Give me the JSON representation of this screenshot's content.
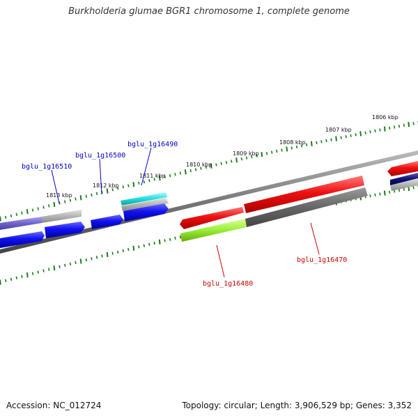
{
  "title": "Burkholderia glumae BGR1 chromosome 1, complete genome",
  "footer": {
    "accession": "Accession: NC_012724",
    "summary": "Topology: circular; Length: 3,906,529 bp; Genes: 3,352"
  },
  "scale_labels": [
    "1806 kbp",
    "1807 kbp",
    "1808 kbp",
    "1809 kbp",
    "1810 kbp",
    "1811 kbp",
    "1812 kbp",
    "1813 kbp"
  ],
  "gene_labels": [
    {
      "text": "bglu_1g16510",
      "color": "#0000cc"
    },
    {
      "text": "bglu_1g16500",
      "color": "#0000cc"
    },
    {
      "text": "bglu_1g16490",
      "color": "#0000cc"
    },
    {
      "text": "bglu_1g16480",
      "color": "#cc0000"
    },
    {
      "text": "bglu_1g16470",
      "color": "#cc0000"
    }
  ],
  "colors": {
    "backbone": "#777777",
    "ticks": "#1a7a1a",
    "forward_cds": "#ee1111",
    "reverse_cds": "#1111ee",
    "highlight_cyan": "#22dddd",
    "highlight_lime": "#99ee33",
    "gray_feature": "#999999"
  }
}
